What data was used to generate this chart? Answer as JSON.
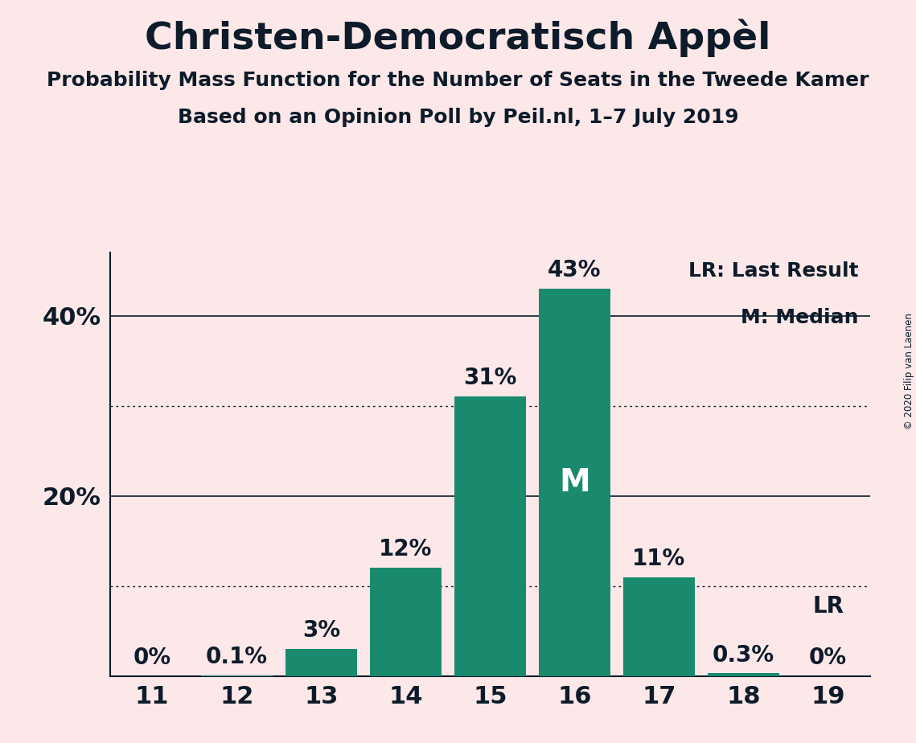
{
  "title": "Christen-Democratisch Appèl",
  "subtitle1": "Probability Mass Function for the Number of Seats in the Tweede Kamer",
  "subtitle2": "Based on an Opinion Poll by Peil.nl, 1–7 July 2019",
  "copyright": "© 2020 Filip van Laenen",
  "categories": [
    11,
    12,
    13,
    14,
    15,
    16,
    17,
    18,
    19
  ],
  "values": [
    0.0,
    0.1,
    3.0,
    12.0,
    31.0,
    43.0,
    11.0,
    0.3,
    0.0
  ],
  "bar_color": "#1a8a6e",
  "background_color": "#fce8e8",
  "text_color": "#0d1b2a",
  "bar_labels": [
    "0%",
    "0.1%",
    "3%",
    "12%",
    "31%",
    "43%",
    "11%",
    "0.3%",
    "0%"
  ],
  "median_bar_index": 5,
  "median_label": "M",
  "lr_bar_index": 8,
  "lr_label": "LR",
  "legend_lr": "LR: Last Result",
  "legend_m": "M: Median",
  "ytick_positions": [
    0,
    20,
    40
  ],
  "ytick_labels": [
    "",
    "20%",
    "40%"
  ],
  "dotted_gridlines": [
    10,
    30
  ],
  "ylim": [
    0,
    47
  ],
  "title_fontsize": 34,
  "subtitle_fontsize": 18,
  "axis_label_fontsize": 22,
  "bar_label_fontsize": 20,
  "legend_fontsize": 18,
  "median_fontsize": 28,
  "lr_inline_fontsize": 20
}
